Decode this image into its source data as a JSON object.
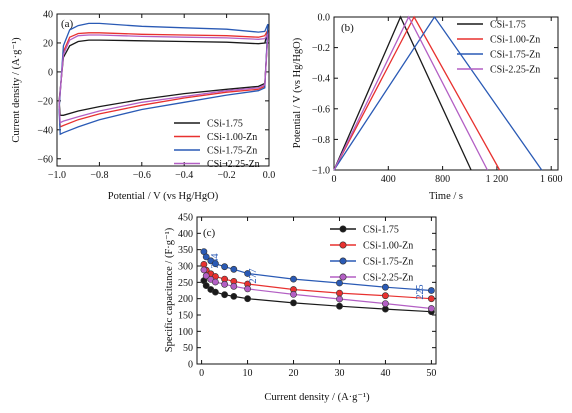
{
  "colors": {
    "CSi-1.75": "#1a1a1a",
    "CSi-1.00-Zn": "#e8312f",
    "CSi-1.75-Zn": "#2a5ab5",
    "CSi-2.25-Zn": "#b35fc4"
  },
  "chart_data": [
    {
      "type": "line",
      "panel_label": "(a)",
      "xlabel": "Potential / V (vs Hg/HgO)",
      "ylabel": "Current density / (A·g⁻¹)",
      "xlim": [
        -1.0,
        0.0
      ],
      "ylim": [
        -65,
        40
      ],
      "xticks": [
        -1.0,
        -0.8,
        -0.6,
        -0.4,
        -0.2,
        0.0
      ],
      "xtick_labels": [
        "−1.0",
        "−0.8",
        "−0.6",
        "−0.4",
        "−0.2",
        "0.0"
      ],
      "yticks": [
        -60,
        -40,
        -20,
        0,
        20,
        40
      ],
      "ytick_labels": [
        "−60",
        "−40",
        "−20",
        "0",
        "20",
        "40"
      ],
      "legend_position": "bottom-right",
      "legend": [
        "CSi-1.75",
        "CSi-1.00-Zn",
        "CSi-1.75-Zn",
        "CSi−2.25-Zn"
      ],
      "series": [
        {
          "name": "CSi-1.75",
          "upper": [
            [
              -0.99,
              -20
            ],
            [
              -0.97,
              10
            ],
            [
              -0.94,
              18
            ],
            [
              -0.9,
              21
            ],
            [
              -0.85,
              22
            ],
            [
              -0.8,
              22
            ],
            [
              -0.6,
              21.5
            ],
            [
              -0.4,
              21
            ],
            [
              -0.2,
              20.5
            ],
            [
              -0.05,
              19.5
            ],
            [
              -0.02,
              20
            ],
            [
              -0.005,
              28
            ]
          ],
          "lower": [
            [
              -0.99,
              -20
            ],
            [
              -0.985,
              -30
            ],
            [
              -0.97,
              -30
            ],
            [
              -0.9,
              -27
            ],
            [
              -0.8,
              -24
            ],
            [
              -0.6,
              -19
            ],
            [
              -0.4,
              -15
            ],
            [
              -0.2,
              -12
            ],
            [
              -0.05,
              -10
            ],
            [
              -0.02,
              -8
            ],
            [
              -0.005,
              28
            ]
          ]
        },
        {
          "name": "CSi-1.00-Zn",
          "upper": [
            [
              -0.99,
              -24
            ],
            [
              -0.97,
              14
            ],
            [
              -0.94,
              24
            ],
            [
              -0.9,
              26.5
            ],
            [
              -0.85,
              27
            ],
            [
              -0.8,
              27
            ],
            [
              -0.6,
              26
            ],
            [
              -0.4,
              25.5
            ],
            [
              -0.2,
              25
            ],
            [
              -0.05,
              24
            ],
            [
              -0.02,
              25
            ],
            [
              -0.005,
              29
            ]
          ],
          "lower": [
            [
              -0.99,
              -24
            ],
            [
              -0.985,
              -38
            ],
            [
              -0.97,
              -37
            ],
            [
              -0.9,
              -33
            ],
            [
              -0.8,
              -29
            ],
            [
              -0.6,
              -23
            ],
            [
              -0.4,
              -18
            ],
            [
              -0.2,
              -14
            ],
            [
              -0.05,
              -12
            ],
            [
              -0.02,
              -10
            ],
            [
              -0.005,
              29
            ]
          ]
        },
        {
          "name": "CSi-1.75-Zn",
          "upper": [
            [
              -0.99,
              -26
            ],
            [
              -0.97,
              18
            ],
            [
              -0.94,
              29
            ],
            [
              -0.9,
              32
            ],
            [
              -0.85,
              33.5
            ],
            [
              -0.8,
              33.5
            ],
            [
              -0.6,
              31.5
            ],
            [
              -0.4,
              30.5
            ],
            [
              -0.2,
              29.5
            ],
            [
              -0.05,
              27.5
            ],
            [
              -0.02,
              28
            ],
            [
              -0.005,
              33
            ]
          ],
          "lower": [
            [
              -0.99,
              -26
            ],
            [
              -0.985,
              -43
            ],
            [
              -0.97,
              -42
            ],
            [
              -0.9,
              -38
            ],
            [
              -0.8,
              -33
            ],
            [
              -0.6,
              -26
            ],
            [
              -0.4,
              -21
            ],
            [
              -0.2,
              -16
            ],
            [
              -0.05,
              -13
            ],
            [
              -0.02,
              -11
            ],
            [
              -0.005,
              33
            ]
          ]
        },
        {
          "name": "CSi-2.25-Zn",
          "upper": [
            [
              -0.99,
              -22
            ],
            [
              -0.97,
              12
            ],
            [
              -0.94,
              22
            ],
            [
              -0.9,
              25
            ],
            [
              -0.85,
              25.5
            ],
            [
              -0.8,
              25.5
            ],
            [
              -0.6,
              24.5
            ],
            [
              -0.4,
              24
            ],
            [
              -0.2,
              23.5
            ],
            [
              -0.05,
              22.5
            ],
            [
              -0.02,
              23
            ],
            [
              -0.005,
              26
            ]
          ],
          "lower": [
            [
              -0.99,
              -22
            ],
            [
              -0.985,
              -35
            ],
            [
              -0.97,
              -34
            ],
            [
              -0.9,
              -31
            ],
            [
              -0.8,
              -27
            ],
            [
              -0.6,
              -21
            ],
            [
              -0.4,
              -17
            ],
            [
              -0.2,
              -13
            ],
            [
              -0.05,
              -11
            ],
            [
              -0.02,
              -9
            ],
            [
              -0.005,
              26
            ]
          ]
        }
      ]
    },
    {
      "type": "line",
      "panel_label": "(b)",
      "xlabel": "Time / s",
      "ylabel": "Potential / V (vs Hg/HgO)",
      "xlim": [
        0,
        1650
      ],
      "ylim": [
        -1.0,
        0.0
      ],
      "xticks": [
        0,
        400,
        800,
        1200,
        1600
      ],
      "xtick_labels": [
        "0",
        "400",
        "800",
        "1 200",
        "1 600"
      ],
      "yticks": [
        -1.0,
        -0.8,
        -0.6,
        -0.4,
        -0.2,
        0.0
      ],
      "ytick_labels": [
        "−1.0",
        "−0.8",
        "−0.6",
        "−0.4",
        "−0.2",
        "0.0"
      ],
      "legend_position": "top-right",
      "legend": [
        "CSi-1.75",
        "CSi-1.00-Zn",
        "CSi-1.75-Zn",
        "CSi-2.25-Zn"
      ],
      "series": [
        {
          "name": "CSi-1.75",
          "points": [
            [
              0,
              -1.0
            ],
            [
              490,
              0.0
            ],
            [
              1010,
              -1.0
            ]
          ]
        },
        {
          "name": "CSi-1.00-Zn",
          "points": [
            [
              0,
              -1.0
            ],
            [
              590,
              0.0
            ],
            [
              1220,
              -1.0
            ]
          ]
        },
        {
          "name": "CSi-1.75-Zn",
          "points": [
            [
              0,
              -1.0
            ],
            [
              740,
              0.0
            ],
            [
              1530,
              -1.0
            ]
          ]
        },
        {
          "name": "CSi-2.25-Zn",
          "points": [
            [
              0,
              -1.0
            ],
            [
              550,
              0.0
            ],
            [
              1130,
              -1.0
            ]
          ]
        }
      ]
    },
    {
      "type": "line",
      "panel_label": "(c)",
      "xlabel": "Current density / (A·g⁻¹)",
      "ylabel": "Specific capacitance / (F·g⁻¹)",
      "xlim": [
        -1,
        51
      ],
      "ylim": [
        0,
        450
      ],
      "xticks": [
        0,
        10,
        20,
        30,
        40,
        50
      ],
      "xtick_labels": [
        "0",
        "10",
        "20",
        "30",
        "40",
        "50"
      ],
      "yticks": [
        0,
        50,
        100,
        150,
        200,
        250,
        300,
        350,
        400,
        450
      ],
      "ytick_labels": [
        "0",
        "50",
        "100",
        "150",
        "200",
        "250",
        "300",
        "350",
        "400",
        "450"
      ],
      "legend_position": "top-right",
      "legend": [
        "CSi-1.75",
        "CSi-1.00-Zn",
        "CSi-1.75-Zn",
        "CSi-2.25-Zn"
      ],
      "annotations": [
        "344",
        "277",
        "225"
      ],
      "x": [
        0.5,
        1,
        2,
        3,
        5,
        7,
        10,
        20,
        30,
        40,
        50
      ],
      "series": [
        {
          "name": "CSi-1.75",
          "values": [
            255,
            240,
            228,
            220,
            212,
            207,
            200,
            187,
            177,
            168,
            160
          ]
        },
        {
          "name": "CSi-1.00-Zn",
          "values": [
            305,
            287,
            276,
            268,
            260,
            253,
            245,
            228,
            217,
            209,
            200
          ]
        },
        {
          "name": "CSi-1.75-Zn",
          "values": [
            344,
            328,
            316,
            307,
            298,
            290,
            277,
            260,
            248,
            235,
            225
          ]
        },
        {
          "name": "CSi-2.25-Zn",
          "values": [
            288,
            270,
            259,
            251,
            244,
            238,
            230,
            213,
            199,
            185,
            170
          ]
        }
      ]
    }
  ]
}
